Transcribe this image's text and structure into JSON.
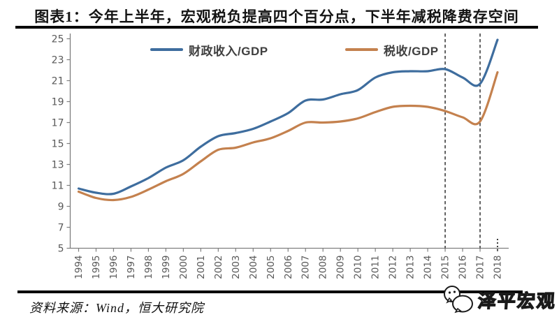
{
  "title": "图表1：今年上半年，宏观税负提高四个百分点，下半年减税降费存空间",
  "source_note": "资料来源：Wind，恒大研究院",
  "watermark_text": "泽平宏观",
  "colors": {
    "fiscal_line": "#3e6d9e",
    "tax_line": "#c4814e",
    "axis": "#7f7f7f",
    "tick_label": "#595959",
    "dashed_line": "#3d3d3d",
    "title_text": "#141414"
  },
  "chart_data": {
    "type": "line",
    "x": [
      "1994",
      "1995",
      "1996",
      "1997",
      "1998",
      "1999",
      "2000",
      "2001",
      "2002",
      "2003",
      "2004",
      "2005",
      "2006",
      "2007",
      "2008",
      "2009",
      "2010",
      "2011",
      "2012",
      "2013",
      "2014",
      "2015",
      "2016",
      "2017",
      "2018"
    ],
    "series": [
      {
        "name": "财政收入/GDP",
        "color_key": "fiscal_line",
        "values": [
          10.7,
          10.3,
          10.2,
          10.9,
          11.7,
          12.7,
          13.4,
          14.7,
          15.7,
          16.0,
          16.4,
          17.1,
          17.9,
          19.1,
          19.2,
          19.7,
          20.1,
          21.3,
          21.8,
          21.9,
          21.9,
          22.1,
          21.3,
          20.7,
          24.9
        ]
      },
      {
        "name": "税收/GDP",
        "color_key": "tax_line",
        "values": [
          10.4,
          9.8,
          9.6,
          9.9,
          10.6,
          11.4,
          12.1,
          13.3,
          14.4,
          14.6,
          15.1,
          15.5,
          16.2,
          17.0,
          17.0,
          17.1,
          17.4,
          18.0,
          18.5,
          18.6,
          18.5,
          18.1,
          17.5,
          17.1,
          21.8
        ]
      }
    ],
    "ylim": [
      5,
      25
    ],
    "ytick_step": 2,
    "grid": false,
    "legend_position": "top",
    "dashed_vlines_at": [
      "2015",
      "2017"
    ],
    "dotted_axis_mark_at": "2018"
  }
}
